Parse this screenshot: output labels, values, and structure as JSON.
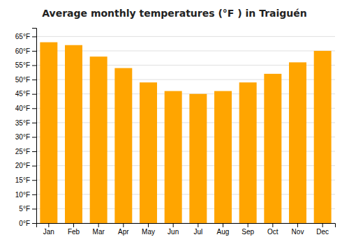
{
  "chart_data": {
    "type": "bar",
    "title": "Average monthly temperatures (°F ) in Traiguén",
    "categories": [
      "Jan",
      "Feb",
      "Mar",
      "Apr",
      "May",
      "Jun",
      "Jul",
      "Aug",
      "Sep",
      "Oct",
      "Nov",
      "Dec"
    ],
    "values": [
      63,
      62,
      58,
      54,
      49,
      46,
      45,
      46,
      49,
      52,
      56,
      60
    ],
    "color": "#FFA500",
    "ylim": [
      0,
      68
    ],
    "yticks": [
      {
        "value": 0,
        "label": "0°F"
      },
      {
        "value": 5,
        "label": "5°F"
      },
      {
        "value": 10,
        "label": "10°F"
      },
      {
        "value": 15,
        "label": "15°F"
      },
      {
        "value": 20,
        "label": "20°F"
      },
      {
        "value": 25,
        "label": "25°F"
      },
      {
        "value": 30,
        "label": "30°F"
      },
      {
        "value": 35,
        "label": "35°F"
      },
      {
        "value": 40,
        "label": "40°F"
      },
      {
        "value": 45,
        "label": "45°F"
      },
      {
        "value": 50,
        "label": "50°F"
      },
      {
        "value": 55,
        "label": "55°F"
      },
      {
        "value": 60,
        "label": "60°F"
      },
      {
        "value": 65,
        "label": "65°F"
      }
    ],
    "grid": true
  }
}
